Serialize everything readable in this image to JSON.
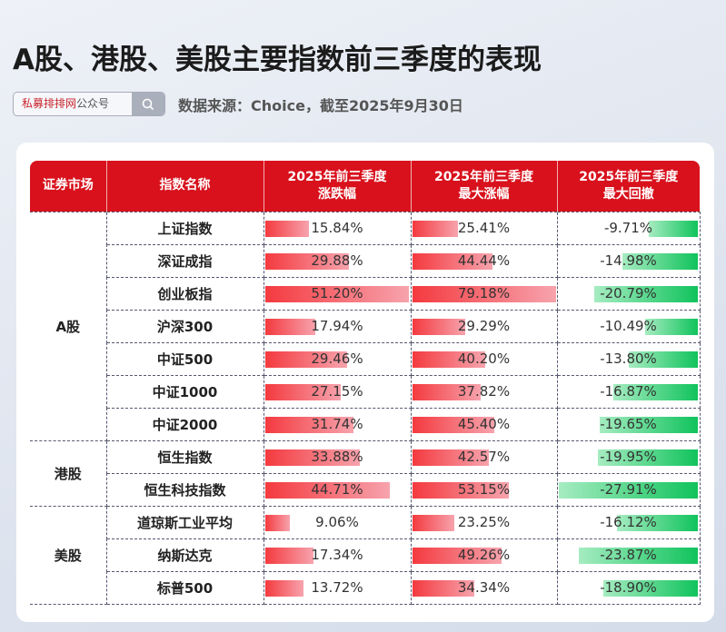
{
  "title": "A股、港股、美股主要指数前三季度的表现",
  "search": {
    "brand": "私募排排网",
    "suffix": "公众号",
    "icon": "search-icon"
  },
  "source": "数据来源：Choice，截至2025年9月30日",
  "colors": {
    "header": "#d8111c",
    "positive": "#f43a3f",
    "negative": "#10c35c"
  },
  "headers": [
    "证券市场",
    "指数名称",
    "2025年前三季度\n涨跌幅",
    "2025年前三季度\n最大涨幅",
    "2025年前三季度\n最大回撤"
  ],
  "groups": [
    {
      "market": "A股",
      "rows": [
        [
          "上证指数",
          "15.84%",
          "25.41%",
          "-9.71%"
        ],
        [
          "深证成指",
          "29.88%",
          "44.44%",
          "-14.98%"
        ],
        [
          "创业板指",
          "51.20%",
          "79.18%",
          "-20.79%"
        ],
        [
          "沪深300",
          "17.94%",
          "29.29%",
          "-10.49%"
        ],
        [
          "中证500",
          "29.46%",
          "40.20%",
          "-13.80%"
        ],
        [
          "中证1000",
          "27.15%",
          "37.82%",
          "-16.87%"
        ],
        [
          "中证2000",
          "31.74%",
          "45.40%",
          "-19.65%"
        ]
      ]
    },
    {
      "market": "港股",
      "rows": [
        [
          "恒生指数",
          "33.88%",
          "42.57%",
          "-19.95%"
        ],
        [
          "恒生科技指数",
          "44.71%",
          "53.15%",
          "-27.91%"
        ]
      ]
    },
    {
      "market": "美股",
      "rows": [
        [
          "道琼斯工业平均",
          "9.06%",
          "23.25%",
          "-16.12%"
        ],
        [
          "纳斯达克",
          "17.34%",
          "49.26%",
          "-23.87%"
        ],
        [
          "标普500",
          "13.72%",
          "34.34%",
          "-18.90%"
        ]
      ]
    }
  ]
}
